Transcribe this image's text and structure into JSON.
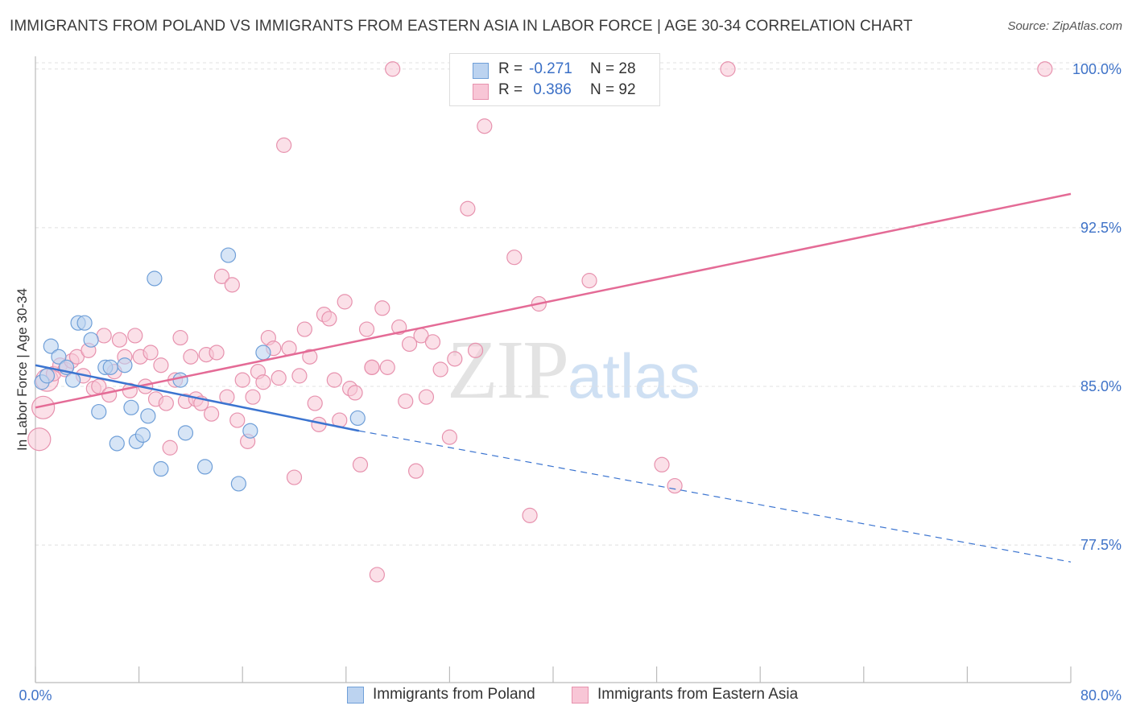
{
  "title": "IMMIGRANTS FROM POLAND VS IMMIGRANTS FROM EASTERN ASIA IN LABOR FORCE | AGE 30-34 CORRELATION CHART",
  "source": "Source: ZipAtlas.com",
  "watermark": {
    "zip": "ZIP",
    "atlas": "atlas"
  },
  "legend_top": [
    {
      "r_label": "R =",
      "r_value": "-0.271",
      "n_label": "N = 28"
    },
    {
      "r_label": "R =",
      "r_value": " 0.386",
      "n_label": "N = 92"
    }
  ],
  "legend_bottom": [
    "Immigrants from Poland",
    "Immigrants from Eastern Asia"
  ],
  "colors": {
    "poland_fill": "#bcd3f0",
    "poland_stroke": "#6f9fd8",
    "poland_line": "#3b74d0",
    "asia_fill": "#f8c6d6",
    "asia_stroke": "#e792ae",
    "asia_line": "#e46b96",
    "tick_label": "#3f73c8",
    "grid": "#e0e0e0"
  },
  "chart_data": {
    "type": "scatter",
    "title": "IMMIGRANTS FROM POLAND VS IMMIGRANTS FROM EASTERN ASIA IN LABOR FORCE | AGE 30-34 CORRELATION CHART",
    "xlabel": "",
    "ylabel": "In Labor Force | Age 30-34",
    "xlim": [
      0,
      80
    ],
    "ylim": [
      71.0,
      100.6
    ],
    "x_tick_labels": [
      "0.0%",
      "80.0%"
    ],
    "y_ticks": [
      77.5,
      85.0,
      92.5,
      100.0
    ],
    "y_tick_labels": [
      "77.5%",
      "85.0%",
      "92.5%",
      "100.0%"
    ],
    "grid": "horizontal dashed",
    "legend": "top-center and bottom",
    "series": [
      {
        "name": "Immigrants from Poland",
        "R": -0.271,
        "N": 28,
        "points": [
          [
            0.5,
            85.2
          ],
          [
            0.9,
            85.5
          ],
          [
            1.2,
            86.9
          ],
          [
            1.8,
            86.4
          ],
          [
            2.4,
            85.9
          ],
          [
            2.9,
            85.3
          ],
          [
            3.3,
            88.0
          ],
          [
            3.8,
            88.0
          ],
          [
            4.3,
            87.2
          ],
          [
            4.9,
            83.8
          ],
          [
            5.4,
            85.9
          ],
          [
            5.8,
            85.9
          ],
          [
            6.3,
            82.3
          ],
          [
            6.9,
            86.0
          ],
          [
            7.4,
            84.0
          ],
          [
            7.8,
            82.4
          ],
          [
            8.3,
            82.7
          ],
          [
            8.7,
            83.6
          ],
          [
            9.2,
            90.1
          ],
          [
            9.7,
            81.1
          ],
          [
            11.2,
            85.3
          ],
          [
            11.6,
            82.8
          ],
          [
            13.1,
            81.2
          ],
          [
            14.9,
            91.2
          ],
          [
            15.7,
            80.4
          ],
          [
            16.6,
            82.9
          ],
          [
            17.6,
            86.6
          ],
          [
            24.9,
            83.5
          ]
        ],
        "trend": {
          "x": [
            0,
            25
          ],
          "y": [
            86.0,
            82.9
          ]
        },
        "trend_extension": {
          "x": [
            25,
            80
          ],
          "y": [
            82.9,
            76.7
          ]
        }
      },
      {
        "name": "Immigrants from Eastern Asia",
        "R": 0.386,
        "N": 92,
        "points": [
          [
            0.3,
            82.5
          ],
          [
            0.6,
            84.0
          ],
          [
            0.9,
            85.3
          ],
          [
            1.4,
            85.6
          ],
          [
            1.9,
            86.0
          ],
          [
            2.3,
            85.8
          ],
          [
            2.8,
            86.2
          ],
          [
            3.2,
            86.4
          ],
          [
            3.7,
            85.5
          ],
          [
            4.1,
            86.7
          ],
          [
            4.5,
            84.9
          ],
          [
            4.9,
            85.0
          ],
          [
            5.3,
            87.4
          ],
          [
            5.7,
            84.6
          ],
          [
            6.1,
            85.7
          ],
          [
            6.5,
            87.2
          ],
          [
            6.9,
            86.4
          ],
          [
            7.3,
            84.8
          ],
          [
            7.7,
            87.4
          ],
          [
            8.1,
            86.4
          ],
          [
            8.5,
            85.0
          ],
          [
            8.9,
            86.6
          ],
          [
            9.3,
            84.4
          ],
          [
            9.7,
            86.0
          ],
          [
            10.1,
            84.2
          ],
          [
            10.4,
            82.1
          ],
          [
            10.8,
            85.3
          ],
          [
            11.2,
            87.3
          ],
          [
            11.6,
            84.3
          ],
          [
            12.0,
            86.4
          ],
          [
            12.4,
            84.4
          ],
          [
            12.8,
            84.2
          ],
          [
            13.2,
            86.5
          ],
          [
            13.6,
            83.7
          ],
          [
            14.0,
            86.6
          ],
          [
            14.4,
            90.2
          ],
          [
            14.8,
            84.5
          ],
          [
            15.2,
            89.8
          ],
          [
            15.6,
            83.4
          ],
          [
            16.0,
            85.3
          ],
          [
            16.4,
            82.4
          ],
          [
            16.8,
            84.5
          ],
          [
            17.2,
            85.7
          ],
          [
            17.6,
            85.2
          ],
          [
            18.0,
            87.3
          ],
          [
            18.4,
            86.8
          ],
          [
            18.8,
            85.4
          ],
          [
            19.2,
            96.4
          ],
          [
            19.6,
            86.8
          ],
          [
            20.0,
            80.7
          ],
          [
            20.4,
            85.5
          ],
          [
            20.8,
            87.7
          ],
          [
            21.2,
            86.4
          ],
          [
            21.6,
            84.2
          ],
          [
            21.9,
            83.2
          ],
          [
            22.3,
            88.4
          ],
          [
            22.7,
            88.2
          ],
          [
            23.1,
            85.3
          ],
          [
            23.5,
            83.4
          ],
          [
            23.9,
            89.0
          ],
          [
            24.3,
            84.9
          ],
          [
            24.7,
            84.7
          ],
          [
            25.1,
            81.3
          ],
          [
            25.6,
            87.7
          ],
          [
            26.0,
            85.9
          ],
          [
            26.4,
            76.1
          ],
          [
            26.8,
            88.7
          ],
          [
            27.2,
            85.9
          ],
          [
            27.6,
            100.0
          ],
          [
            28.1,
            87.8
          ],
          [
            28.6,
            84.3
          ],
          [
            28.9,
            87.0
          ],
          [
            29.4,
            81.0
          ],
          [
            29.8,
            87.4
          ],
          [
            30.2,
            84.5
          ],
          [
            30.7,
            87.1
          ],
          [
            31.3,
            85.8
          ],
          [
            32.0,
            82.6
          ],
          [
            32.4,
            86.3
          ],
          [
            33.4,
            93.4
          ],
          [
            34.0,
            86.7
          ],
          [
            34.7,
            97.3
          ],
          [
            35.9,
            100.0
          ],
          [
            37.0,
            91.1
          ],
          [
            38.2,
            78.9
          ],
          [
            38.9,
            88.9
          ],
          [
            42.8,
            90.0
          ],
          [
            48.4,
            81.3
          ],
          [
            49.4,
            80.3
          ],
          [
            53.5,
            100.0
          ],
          [
            78.0,
            100.0
          ],
          [
            26.0,
            85.9
          ]
        ],
        "trend": {
          "x": [
            0,
            80
          ],
          "y": [
            84.0,
            94.1
          ]
        }
      }
    ]
  }
}
